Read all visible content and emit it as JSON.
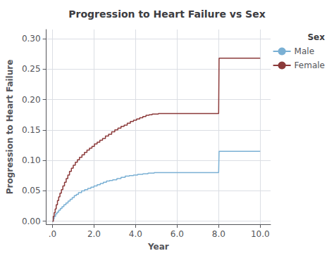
{
  "chart_data": {
    "type": "step",
    "title": "Progression to Heart Failure vs Sex",
    "xlabel": "Year",
    "ylabel": "Progression to Heart Failure",
    "xlim": [
      -0.3,
      10.5
    ],
    "ylim": [
      -0.005,
      0.315
    ],
    "xticks": [
      {
        "value": 0.0,
        "label": ".0"
      },
      {
        "value": 2.0,
        "label": "2.0"
      },
      {
        "value": 4.0,
        "label": "4.0"
      },
      {
        "value": 6.0,
        "label": "6.0"
      },
      {
        "value": 8.0,
        "label": "8.0"
      },
      {
        "value": 10.0,
        "label": "10.0"
      }
    ],
    "yticks": [
      {
        "value": 0.0,
        "label": "0.00"
      },
      {
        "value": 0.05,
        "label": "0.05"
      },
      {
        "value": 0.1,
        "label": "0.10"
      },
      {
        "value": 0.15,
        "label": "0.15"
      },
      {
        "value": 0.2,
        "label": "0.20"
      },
      {
        "value": 0.25,
        "label": "0.25"
      },
      {
        "value": 0.3,
        "label": "0.30"
      }
    ],
    "grid": true,
    "legend": "upper right",
    "legend_title": "Sex",
    "series": [
      {
        "name": "Male",
        "color": "#7ab0d4",
        "x": [
          0,
          0.04,
          0.08,
          0.15,
          0.22,
          0.3,
          0.38,
          0.46,
          0.55,
          0.65,
          0.75,
          0.85,
          0.95,
          1.05,
          1.15,
          1.25,
          1.4,
          1.55,
          1.7,
          1.85,
          2.0,
          2.15,
          2.3,
          2.45,
          2.6,
          2.75,
          2.9,
          3.1,
          3.3,
          3.5,
          3.7,
          3.9,
          4.1,
          4.35,
          4.6,
          4.9,
          5.3,
          5.7,
          6.1,
          6.6,
          7.1,
          7.6,
          8.0,
          8.02,
          10.0
        ],
        "values": [
          0.0,
          0.004,
          0.008,
          0.012,
          0.015,
          0.018,
          0.021,
          0.024,
          0.027,
          0.03,
          0.033,
          0.036,
          0.039,
          0.042,
          0.044,
          0.047,
          0.05,
          0.052,
          0.054,
          0.056,
          0.058,
          0.06,
          0.062,
          0.064,
          0.066,
          0.067,
          0.068,
          0.07,
          0.072,
          0.074,
          0.075,
          0.076,
          0.077,
          0.078,
          0.079,
          0.08,
          0.08,
          0.08,
          0.08,
          0.08,
          0.08,
          0.08,
          0.08,
          0.115,
          0.115
        ]
      },
      {
        "name": "Female",
        "color": "#8b3a3a",
        "x": [
          0,
          0.04,
          0.08,
          0.13,
          0.18,
          0.24,
          0.3,
          0.36,
          0.43,
          0.5,
          0.58,
          0.66,
          0.74,
          0.82,
          0.91,
          1.0,
          1.1,
          1.2,
          1.3,
          1.42,
          1.54,
          1.66,
          1.78,
          1.9,
          2.02,
          2.15,
          2.28,
          2.41,
          2.55,
          2.7,
          2.85,
          3.0,
          3.15,
          3.3,
          3.45,
          3.6,
          3.75,
          3.9,
          4.05,
          4.2,
          4.35,
          4.5,
          4.65,
          4.8,
          5.1,
          5.5,
          6.0,
          6.5,
          7.0,
          7.5,
          8.0,
          8.02,
          10.0
        ],
        "values": [
          0.0,
          0.008,
          0.014,
          0.02,
          0.027,
          0.034,
          0.04,
          0.046,
          0.052,
          0.058,
          0.064,
          0.07,
          0.076,
          0.082,
          0.087,
          0.092,
          0.097,
          0.101,
          0.105,
          0.109,
          0.113,
          0.117,
          0.12,
          0.123,
          0.127,
          0.13,
          0.133,
          0.136,
          0.14,
          0.143,
          0.147,
          0.15,
          0.153,
          0.156,
          0.158,
          0.161,
          0.164,
          0.166,
          0.168,
          0.17,
          0.172,
          0.174,
          0.175,
          0.176,
          0.177,
          0.177,
          0.177,
          0.177,
          0.177,
          0.177,
          0.177,
          0.268,
          0.268
        ]
      }
    ]
  }
}
